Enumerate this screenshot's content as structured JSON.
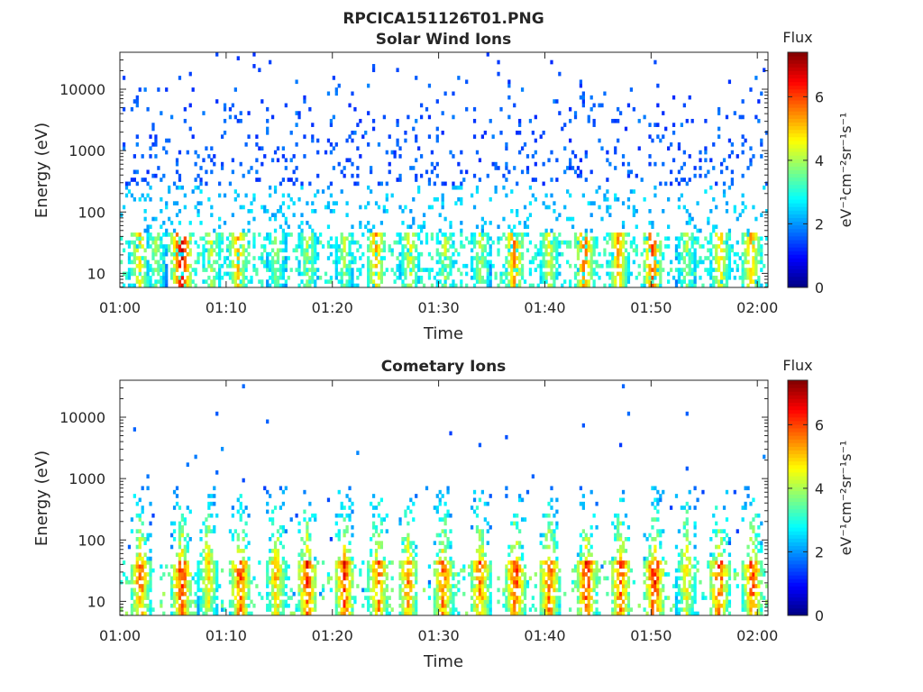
{
  "figure_title": "RPCICA151126T01.PNG",
  "colorbar": {
    "label": "Flux",
    "unit_text": "eV⁻¹cm⁻²sr⁻¹s⁻¹",
    "min": 0,
    "max": 7.4,
    "ticks": [
      "0",
      "2",
      "4",
      "6"
    ],
    "colormap": "jet"
  },
  "chart_data": [
    {
      "type": "heatmap",
      "title": "Solar Wind Ions",
      "xlabel": "Time",
      "ylabel": "Energy (eV)",
      "x_ticks": [
        "01:00",
        "01:10",
        "01:20",
        "01:30",
        "01:40",
        "01:50",
        "02:00"
      ],
      "x_range_minutes": [
        0,
        61
      ],
      "y_scale": "log",
      "y_ticks": [
        "10",
        "100",
        "1000",
        "10000"
      ],
      "ylim": [
        5.9,
        40000
      ],
      "flux_range": [
        0,
        7.4
      ],
      "bursts": [
        {
          "t": 1.7,
          "peak": 5.0
        },
        {
          "t": 3.3,
          "peak": 4.0
        },
        {
          "t": 5.7,
          "peak": 7.0
        },
        {
          "t": 8.5,
          "peak": 4.4
        },
        {
          "t": 11.0,
          "peak": 5.3
        },
        {
          "t": 14.6,
          "peak": 4.0
        },
        {
          "t": 17.6,
          "peak": 4.3
        },
        {
          "t": 21.0,
          "peak": 4.1
        },
        {
          "t": 24.0,
          "peak": 5.3
        },
        {
          "t": 27.2,
          "peak": 4.6
        },
        {
          "t": 30.5,
          "peak": 4.3
        },
        {
          "t": 33.8,
          "peak": 4.3
        },
        {
          "t": 37.0,
          "peak": 5.6
        },
        {
          "t": 40.3,
          "peak": 4.6
        },
        {
          "t": 43.6,
          "peak": 5.9
        },
        {
          "t": 46.8,
          "peak": 5.4
        },
        {
          "t": 50.0,
          "peak": 6.1
        },
        {
          "t": 53.2,
          "peak": 4.2
        },
        {
          "t": 56.4,
          "peak": 5.0
        },
        {
          "t": 59.3,
          "peak": 5.3
        }
      ]
    },
    {
      "type": "heatmap",
      "title": "Cometary Ions",
      "xlabel": "Time",
      "ylabel": "Energy (eV)",
      "x_ticks": [
        "01:00",
        "01:10",
        "01:20",
        "01:30",
        "01:40",
        "01:50",
        "02:00"
      ],
      "x_range_minutes": [
        0,
        61
      ],
      "y_scale": "log",
      "y_ticks": [
        "10",
        "100",
        "1000",
        "10000"
      ],
      "ylim": [
        5.9,
        40000
      ],
      "flux_range": [
        0,
        7.4
      ],
      "bursts": [
        {
          "t": 1.8,
          "peak": 6.6
        },
        {
          "t": 5.7,
          "peak": 7.1
        },
        {
          "t": 8.2,
          "peak": 5.6
        },
        {
          "t": 11.2,
          "peak": 6.9
        },
        {
          "t": 14.6,
          "peak": 6.0
        },
        {
          "t": 17.5,
          "peak": 6.9
        },
        {
          "t": 21.0,
          "peak": 7.0
        },
        {
          "t": 24.2,
          "peak": 6.7
        },
        {
          "t": 27.0,
          "peak": 6.4
        },
        {
          "t": 30.3,
          "peak": 6.7
        },
        {
          "t": 33.8,
          "peak": 6.6
        },
        {
          "t": 37.1,
          "peak": 7.0
        },
        {
          "t": 40.3,
          "peak": 6.8
        },
        {
          "t": 43.8,
          "peak": 7.1
        },
        {
          "t": 47.0,
          "peak": 6.9
        },
        {
          "t": 50.2,
          "peak": 7.2
        },
        {
          "t": 53.2,
          "peak": 5.5
        },
        {
          "t": 56.3,
          "peak": 6.9
        },
        {
          "t": 59.4,
          "peak": 6.9
        }
      ]
    }
  ]
}
